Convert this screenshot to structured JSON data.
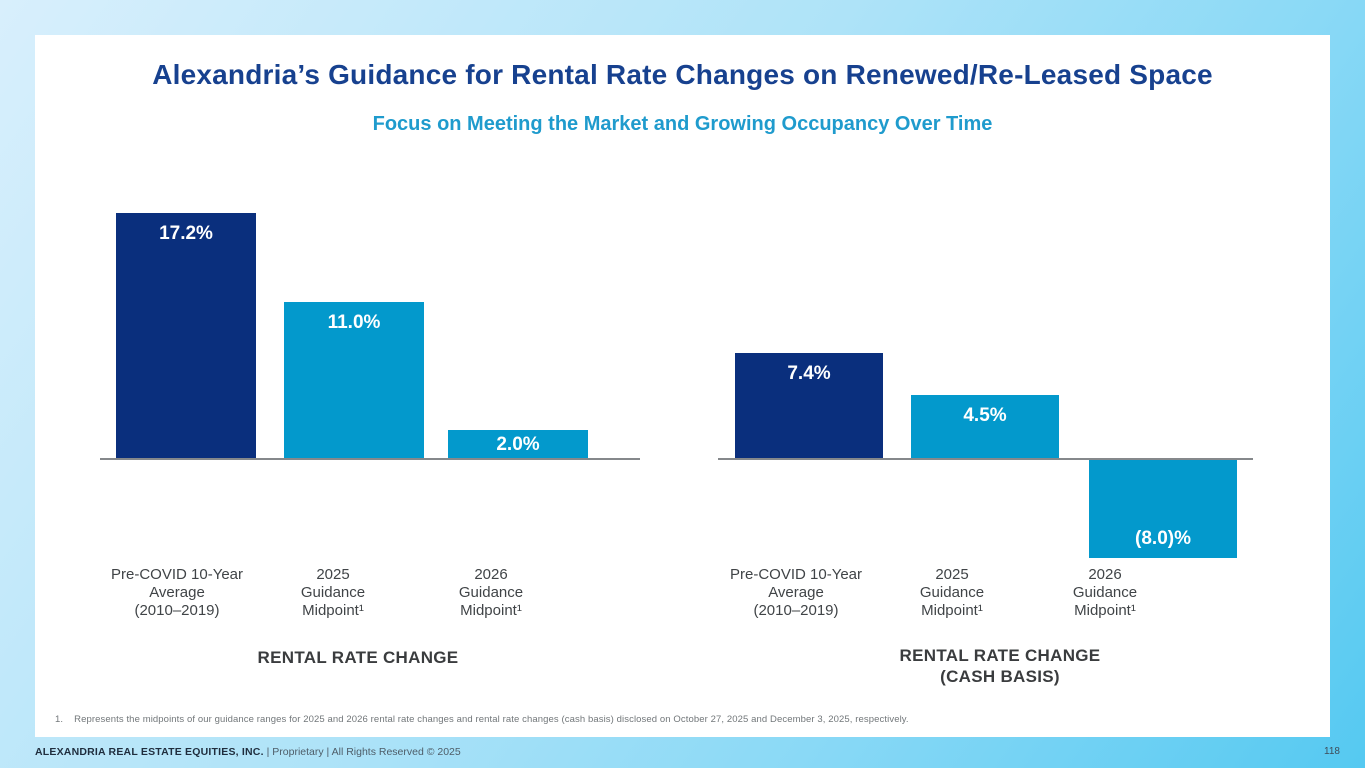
{
  "slide": {
    "title": "Alexandria’s Guidance for Rental Rate Changes on Renewed/Re-Leased Space",
    "subtitle": "Focus on Meeting the Market and Growing Occupancy Over Time"
  },
  "colors": {
    "navy": "#0A2F7D",
    "cyan": "#0399CC",
    "title_navy": "#17418F",
    "subtitle_teal": "#1F9BCD",
    "axis_gray": "#85888B",
    "border_blue_light": "#D8EFFC",
    "border_blue_deep": "#55C9F1"
  },
  "chart_data": [
    {
      "type": "bar",
      "title": "RENTAL RATE CHANGE",
      "categories": [
        "Pre-COVID 10-Year\nAverage\n(2010–2019)",
        "2025\nGuidance\nMidpoint¹",
        "2026\nGuidance\nMidpoint¹"
      ],
      "values": [
        17.2,
        11.0,
        2.0
      ],
      "labels": [
        "17.2%",
        "11.0%",
        "2.0%"
      ],
      "bar_colors": [
        "navy",
        "cyan",
        "cyan"
      ],
      "xlabel": "",
      "ylabel": "",
      "ylim": [
        0,
        18
      ],
      "grid": false,
      "legend": "none"
    },
    {
      "type": "bar",
      "title": "RENTAL RATE CHANGE\n(CASH BASIS)",
      "categories": [
        "Pre-COVID 10-Year\nAverage\n(2010–2019)",
        "2025\nGuidance\nMidpoint¹",
        "2026\nGuidance\nMidpoint¹"
      ],
      "values": [
        7.4,
        4.5,
        -8.0
      ],
      "labels": [
        "7.4%",
        "4.5%",
        "(8.0)%"
      ],
      "bar_colors": [
        "navy",
        "cyan",
        "cyan"
      ],
      "xlabel": "",
      "ylabel": "",
      "ylim": [
        -9,
        8
      ],
      "grid": false,
      "legend": "none"
    }
  ],
  "footnote": {
    "number": "1.",
    "text": "Represents the midpoints of our guidance ranges for 2025 and 2026 rental rate changes and rental rate changes (cash basis) disclosed on October 27, 2025 and December 3, 2025, respectively."
  },
  "footer": {
    "company": "ALEXANDRIA REAL ESTATE EQUITIES, INC.",
    "rights": "| Proprietary | All Rights Reserved © 2025",
    "page_number": "118"
  }
}
